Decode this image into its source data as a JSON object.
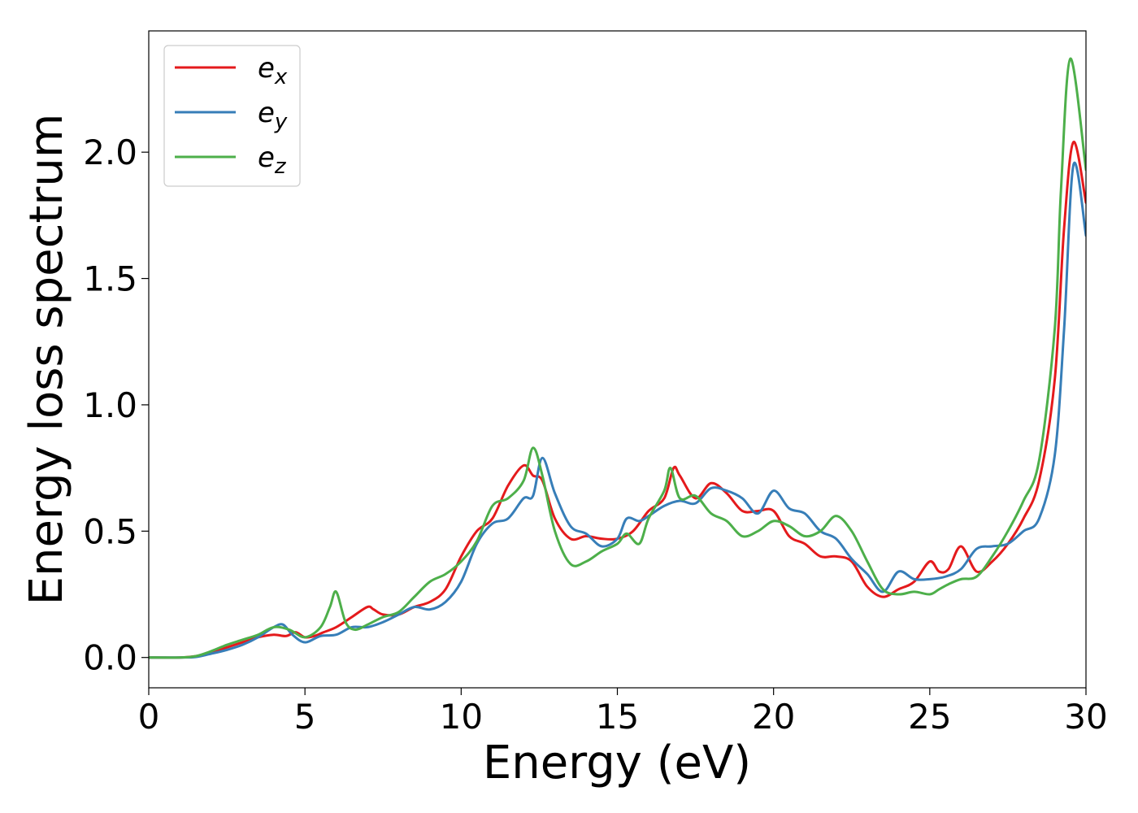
{
  "chart_data": {
    "type": "line",
    "xlabel": "Energy (eV)",
    "ylabel": "Energy loss spectrum",
    "xlim": [
      0,
      30
    ],
    "ylim": [
      -0.12,
      2.48
    ],
    "x_ticks": [
      0,
      5,
      10,
      15,
      20,
      25,
      30
    ],
    "x_tick_labels": [
      "0",
      "5",
      "10",
      "15",
      "20",
      "25",
      "30"
    ],
    "y_ticks": [
      0.0,
      0.5,
      1.0,
      1.5,
      2.0
    ],
    "y_tick_labels": [
      "0.0",
      "0.5",
      "1.0",
      "1.5",
      "2.0"
    ],
    "grid": false,
    "legend_position": "top-left",
    "series": [
      {
        "name": "e_x",
        "label_base": "e",
        "label_sub": "x",
        "color": "#e41a1c",
        "x": [
          0,
          1,
          1.5,
          2,
          2.5,
          3,
          3.5,
          4,
          4.4,
          4.7,
          5,
          5.3,
          5.6,
          6,
          6.5,
          7,
          7.2,
          7.5,
          8,
          8.5,
          9,
          9.5,
          10,
          10.5,
          11,
          11.5,
          12,
          12.3,
          12.6,
          13,
          13.5,
          14,
          14.5,
          15,
          15.5,
          16,
          16.5,
          16.8,
          17,
          17.5,
          18,
          18.5,
          19,
          19.5,
          20,
          20.5,
          21,
          21.5,
          22,
          22.5,
          23,
          23.5,
          24,
          24.5,
          25,
          25.3,
          25.6,
          26,
          26.5,
          27,
          27.5,
          28,
          28.5,
          29,
          29.3,
          29.6,
          30
        ],
        "y": [
          0,
          0,
          0.005,
          0.02,
          0.04,
          0.06,
          0.08,
          0.09,
          0.085,
          0.1,
          0.08,
          0.085,
          0.1,
          0.12,
          0.16,
          0.2,
          0.19,
          0.17,
          0.17,
          0.2,
          0.22,
          0.27,
          0.4,
          0.5,
          0.55,
          0.68,
          0.76,
          0.72,
          0.7,
          0.55,
          0.47,
          0.48,
          0.47,
          0.47,
          0.5,
          0.58,
          0.63,
          0.75,
          0.72,
          0.63,
          0.69,
          0.65,
          0.58,
          0.58,
          0.58,
          0.48,
          0.45,
          0.4,
          0.4,
          0.38,
          0.28,
          0.24,
          0.27,
          0.3,
          0.38,
          0.34,
          0.35,
          0.44,
          0.34,
          0.38,
          0.45,
          0.55,
          0.7,
          1.1,
          1.7,
          2.04,
          1.8
        ]
      },
      {
        "name": "e_y",
        "label_base": "e",
        "label_sub": "y",
        "color": "#377eb8",
        "x": [
          0,
          1,
          1.5,
          2,
          2.5,
          3,
          3.5,
          4,
          4.3,
          4.6,
          5,
          5.5,
          6,
          6.5,
          7,
          7.5,
          8,
          8.5,
          9,
          9.5,
          10,
          10.5,
          11,
          11.5,
          12,
          12.3,
          12.6,
          13,
          13.5,
          14,
          14.5,
          15,
          15.3,
          15.7,
          16,
          16.5,
          17,
          17.5,
          18,
          18.5,
          19,
          19.5,
          20,
          20.5,
          21,
          21.5,
          22,
          22.5,
          23,
          23.5,
          24,
          24.5,
          25,
          25.5,
          26,
          26.5,
          27,
          27.5,
          28,
          28.5,
          29,
          29.3,
          29.6,
          30
        ],
        "y": [
          0,
          0,
          0.002,
          0.015,
          0.03,
          0.05,
          0.08,
          0.12,
          0.13,
          0.09,
          0.06,
          0.085,
          0.09,
          0.12,
          0.12,
          0.14,
          0.17,
          0.2,
          0.19,
          0.22,
          0.3,
          0.45,
          0.53,
          0.55,
          0.63,
          0.64,
          0.79,
          0.65,
          0.52,
          0.49,
          0.44,
          0.47,
          0.55,
          0.54,
          0.56,
          0.6,
          0.62,
          0.61,
          0.67,
          0.66,
          0.63,
          0.57,
          0.66,
          0.59,
          0.57,
          0.5,
          0.47,
          0.39,
          0.33,
          0.26,
          0.34,
          0.31,
          0.31,
          0.32,
          0.35,
          0.43,
          0.44,
          0.45,
          0.5,
          0.55,
          0.8,
          1.3,
          1.95,
          1.67
        ]
      },
      {
        "name": "e_z",
        "label_base": "e",
        "label_sub": "z",
        "color": "#4daf4a",
        "x": [
          0,
          1,
          1.5,
          2,
          2.5,
          3,
          3.5,
          4,
          4.5,
          5,
          5.5,
          5.8,
          6,
          6.3,
          6.6,
          7,
          7.5,
          8,
          8.5,
          9,
          9.5,
          10,
          10.5,
          11,
          11.5,
          12,
          12.3,
          12.6,
          13,
          13.5,
          14,
          14.5,
          15,
          15.3,
          15.7,
          16,
          16.5,
          16.7,
          17,
          17.5,
          18,
          18.5,
          19,
          19.5,
          20,
          20.5,
          21,
          21.5,
          22,
          22.5,
          23,
          23.5,
          24,
          24.5,
          25,
          25.3,
          25.6,
          26,
          26.5,
          27,
          27.5,
          28,
          28.5,
          29,
          29.2,
          29.5,
          30
        ],
        "y": [
          0,
          0,
          0.005,
          0.025,
          0.05,
          0.07,
          0.09,
          0.12,
          0.11,
          0.08,
          0.12,
          0.2,
          0.26,
          0.14,
          0.11,
          0.13,
          0.16,
          0.18,
          0.24,
          0.3,
          0.33,
          0.38,
          0.46,
          0.6,
          0.63,
          0.7,
          0.83,
          0.72,
          0.5,
          0.37,
          0.38,
          0.42,
          0.45,
          0.49,
          0.45,
          0.55,
          0.66,
          0.75,
          0.63,
          0.64,
          0.57,
          0.54,
          0.48,
          0.5,
          0.54,
          0.52,
          0.48,
          0.5,
          0.56,
          0.5,
          0.38,
          0.27,
          0.25,
          0.26,
          0.25,
          0.27,
          0.29,
          0.31,
          0.32,
          0.4,
          0.5,
          0.62,
          0.78,
          1.3,
          1.85,
          2.37,
          1.93
        ]
      }
    ]
  }
}
